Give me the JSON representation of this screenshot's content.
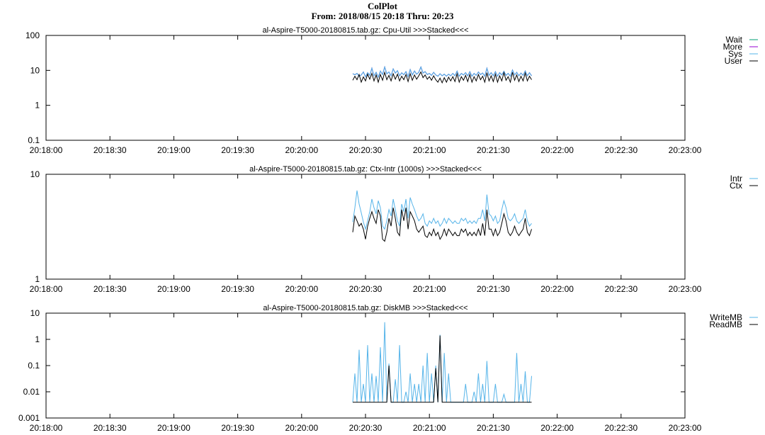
{
  "header": {
    "title": "ColPlot",
    "subtitle": "From: 2018/08/15 20:18 Thru: 20:23"
  },
  "colors": {
    "black": "#000000",
    "cyan": "#56b4e9",
    "purple": "#9400d3",
    "green": "#009e73"
  },
  "chart_data": [
    {
      "type": "line",
      "title": "al-Aspire-T5000-20180815.tab.gz: Cpu-Util >>>Stacked<<<",
      "yscale": "log",
      "ylim": [
        0.1,
        100
      ],
      "yticks": [
        {
          "value": 0.1,
          "label": "0.1"
        },
        {
          "value": 1,
          "label": "1"
        },
        {
          "value": 10,
          "label": "10"
        },
        {
          "value": 100,
          "label": "100"
        }
      ],
      "xlim": [
        "20:18:00",
        "20:23:00"
      ],
      "xticks": [
        "20:18:00",
        "20:18:30",
        "20:19:00",
        "20:19:30",
        "20:20:00",
        "20:20:30",
        "20:21:00",
        "20:21:30",
        "20:22:00",
        "20:22:30",
        "20:23:00"
      ],
      "x_start": "20:20:24",
      "x_step_seconds": 1,
      "legend": "right",
      "series": [
        {
          "name": "Wait",
          "color": "#009e73",
          "values": [
            8.0,
            7.5,
            8.2,
            6.8,
            7.4,
            9.0,
            6.5,
            8.6,
            7.2,
            11.5,
            7.0,
            8.8,
            6.4,
            9.5,
            7.6,
            12.5,
            8.0,
            9.0,
            7.0,
            11.0,
            8.4,
            9.8,
            7.0,
            8.5,
            7.5,
            9.2,
            6.6,
            10.5,
            7.4,
            9.6,
            7.8,
            8.8,
            12.5,
            8.4,
            9.2,
            7.6,
            8.2,
            7.2,
            8.8,
            7.4,
            6.8,
            8.0,
            7.0,
            7.8,
            6.8,
            7.8,
            7.0,
            8.2,
            7.0,
            9.5,
            6.8,
            8.2,
            7.4,
            8.6,
            7.0,
            9.2,
            6.8,
            8.2,
            7.2,
            9.0,
            7.6,
            8.4,
            6.8,
            11.5,
            7.2,
            8.6,
            7.0,
            9.2,
            6.8,
            8.6,
            7.4,
            9.4,
            7.2,
            8.2,
            6.8,
            10.2,
            7.4,
            8.8,
            7.0,
            8.4,
            7.2,
            9.6,
            7.0,
            8.6,
            7.0
          ]
        },
        {
          "name": "More",
          "color": "#9400d3",
          "values": [
            8.0,
            7.5,
            8.2,
            6.8,
            7.4,
            9.0,
            6.5,
            8.6,
            7.2,
            11.5,
            7.0,
            8.8,
            6.4,
            9.5,
            7.6,
            12.5,
            8.0,
            9.0,
            7.0,
            11.0,
            8.4,
            9.8,
            7.0,
            8.5,
            7.5,
            9.2,
            6.6,
            10.5,
            7.4,
            9.6,
            7.8,
            8.8,
            12.5,
            8.4,
            9.2,
            7.6,
            8.2,
            7.2,
            8.8,
            7.4,
            6.8,
            8.0,
            7.0,
            7.8,
            6.8,
            7.8,
            7.0,
            8.2,
            7.0,
            9.5,
            6.8,
            8.2,
            7.4,
            8.6,
            7.0,
            9.2,
            6.8,
            8.2,
            7.2,
            9.0,
            7.6,
            8.4,
            6.8,
            11.5,
            7.2,
            8.6,
            7.0,
            9.2,
            6.8,
            8.6,
            7.4,
            9.4,
            7.2,
            8.2,
            6.8,
            10.2,
            7.4,
            8.8,
            7.0,
            8.4,
            7.2,
            9.6,
            7.0,
            8.6,
            7.0
          ]
        },
        {
          "name": "Sys",
          "color": "#56b4e9",
          "values": [
            8.0,
            7.5,
            8.2,
            6.8,
            7.4,
            9.0,
            6.5,
            8.6,
            7.2,
            11.5,
            7.0,
            8.8,
            6.4,
            9.5,
            7.6,
            12.5,
            8.0,
            9.0,
            7.0,
            11.0,
            8.4,
            9.8,
            7.0,
            8.5,
            7.5,
            9.2,
            6.6,
            10.5,
            7.4,
            9.6,
            7.8,
            8.8,
            12.5,
            8.4,
            9.2,
            7.6,
            8.2,
            7.2,
            8.8,
            7.4,
            6.8,
            8.0,
            7.0,
            7.8,
            6.8,
            7.8,
            7.0,
            8.2,
            7.0,
            9.5,
            6.8,
            8.2,
            7.4,
            8.6,
            7.0,
            9.2,
            6.8,
            8.2,
            7.2,
            9.0,
            7.6,
            8.4,
            6.8,
            11.5,
            7.2,
            8.6,
            7.0,
            9.2,
            6.8,
            8.6,
            7.4,
            9.4,
            7.2,
            8.2,
            6.8,
            10.2,
            7.4,
            8.8,
            7.0,
            8.4,
            7.2,
            9.6,
            7.0,
            8.6,
            7.0
          ]
        },
        {
          "name": "User",
          "color": "#000000",
          "values": [
            5.2,
            6.8,
            5.4,
            7.6,
            4.6,
            6.5,
            5.0,
            7.8,
            5.6,
            8.2,
            5.0,
            7.4,
            4.6,
            7.6,
            5.2,
            8.8,
            5.4,
            7.2,
            5.0,
            8.0,
            5.6,
            7.8,
            5.0,
            6.8,
            5.4,
            7.6,
            4.8,
            8.0,
            5.2,
            7.4,
            5.6,
            7.0,
            9.0,
            6.2,
            7.4,
            5.6,
            6.6,
            5.2,
            7.0,
            5.4,
            4.6,
            6.0,
            4.4,
            6.2,
            4.6,
            6.4,
            5.0,
            6.6,
            4.8,
            8.0,
            4.6,
            6.6,
            5.2,
            7.2,
            4.8,
            7.6,
            4.6,
            6.6,
            5.0,
            7.6,
            5.4,
            6.8,
            4.6,
            8.6,
            5.0,
            7.0,
            4.8,
            7.8,
            4.6,
            7.0,
            5.0,
            8.6,
            5.2,
            6.6,
            4.6,
            8.8,
            5.2,
            7.4,
            4.8,
            6.8,
            5.0,
            8.4,
            5.0,
            6.8,
            5.4
          ]
        }
      ]
    },
    {
      "type": "line",
      "title": "al-Aspire-T5000-20180815.tab.gz: Ctx-Intr (1000s) >>>Stacked<<<",
      "yscale": "log",
      "ylim": [
        1,
        10
      ],
      "yticks": [
        {
          "value": 1,
          "label": "1"
        },
        {
          "value": 10,
          "label": "10"
        }
      ],
      "xlim": [
        "20:18:00",
        "20:23:00"
      ],
      "xticks": [
        "20:18:00",
        "20:18:30",
        "20:19:00",
        "20:19:30",
        "20:20:00",
        "20:20:30",
        "20:21:00",
        "20:21:30",
        "20:22:00",
        "20:22:30",
        "20:23:00"
      ],
      "x_start": "20:20:24",
      "x_step_seconds": 1,
      "legend": "right",
      "series": [
        {
          "name": "Intr",
          "color": "#56b4e9",
          "values": [
            3.5,
            4.8,
            7.0,
            5.2,
            4.3,
            3.5,
            3.0,
            3.6,
            4.4,
            5.8,
            4.8,
            4.2,
            5.6,
            4.8,
            3.2,
            3.0,
            3.6,
            4.6,
            4.0,
            5.8,
            4.6,
            3.6,
            3.2,
            5.2,
            4.4,
            5.8,
            3.8,
            6.0,
            5.2,
            4.6,
            4.0,
            3.6,
            3.8,
            4.2,
            3.4,
            3.2,
            3.6,
            3.4,
            3.8,
            3.4,
            3.6,
            3.2,
            3.4,
            3.8,
            3.4,
            3.8,
            3.6,
            3.4,
            3.6,
            3.4,
            3.4,
            3.8,
            3.6,
            3.8,
            3.4,
            3.6,
            3.4,
            3.6,
            3.4,
            3.8,
            3.8,
            4.6,
            3.6,
            6.4,
            4.2,
            4.0,
            3.6,
            4.0,
            3.4,
            3.6,
            4.6,
            5.6,
            4.8,
            3.8,
            3.6,
            3.8,
            4.2,
            3.6,
            3.4,
            3.6,
            3.8,
            4.6,
            3.6,
            3.2,
            3.4
          ]
        },
        {
          "name": "Ctx",
          "color": "#000000",
          "values": [
            2.8,
            4.0,
            3.6,
            3.2,
            3.4,
            3.0,
            2.4,
            3.2,
            3.8,
            4.4,
            3.8,
            3.4,
            4.6,
            4.0,
            2.4,
            2.3,
            2.8,
            3.8,
            3.2,
            4.8,
            3.8,
            2.8,
            2.6,
            4.6,
            3.6,
            4.8,
            3.0,
            4.4,
            4.0,
            3.6,
            3.0,
            2.8,
            3.0,
            3.2,
            2.6,
            2.5,
            2.8,
            2.6,
            3.0,
            2.6,
            2.8,
            2.4,
            2.6,
            3.0,
            2.6,
            3.0,
            2.8,
            2.6,
            2.8,
            2.6,
            2.6,
            3.0,
            2.8,
            3.0,
            2.6,
            2.8,
            2.6,
            2.8,
            2.6,
            3.0,
            2.6,
            3.4,
            2.6,
            4.6,
            3.0,
            3.0,
            2.6,
            3.0,
            2.6,
            2.8,
            3.4,
            4.2,
            3.6,
            2.8,
            2.6,
            2.8,
            3.2,
            2.8,
            2.6,
            2.8,
            3.0,
            3.8,
            2.8,
            2.6,
            3.0
          ]
        }
      ]
    },
    {
      "type": "line",
      "title": "al-Aspire-T5000-20180815.tab.gz: DiskMB >>>Stacked<<<",
      "yscale": "log",
      "ylim": [
        0.001,
        10
      ],
      "yticks": [
        {
          "value": 0.001,
          "label": "0.001"
        },
        {
          "value": 0.01,
          "label": "0.01"
        },
        {
          "value": 0.1,
          "label": "0.1"
        },
        {
          "value": 1,
          "label": "1"
        },
        {
          "value": 10,
          "label": "10"
        }
      ],
      "xlim": [
        "20:18:00",
        "20:23:00"
      ],
      "xticks": [
        "20:18:00",
        "20:18:30",
        "20:19:00",
        "20:19:30",
        "20:20:00",
        "20:20:30",
        "20:21:00",
        "20:21:30",
        "20:22:00",
        "20:22:30",
        "20:23:00"
      ],
      "x_start": "20:20:24",
      "x_step_seconds": 1,
      "legend": "right",
      "series": [
        {
          "name": "WriteMB",
          "color": "#56b4e9",
          "values": [
            0.004,
            0.05,
            0.004,
            0.4,
            0.004,
            0.02,
            0.004,
            0.6,
            0.004,
            0.05,
            0.004,
            0.04,
            0.004,
            0.5,
            0.004,
            4.5,
            0.004,
            0.12,
            0.004,
            0.004,
            0.03,
            0.004,
            0.6,
            0.004,
            0.004,
            0.01,
            0.004,
            0.05,
            0.004,
            0.02,
            0.004,
            0.02,
            0.004,
            0.1,
            0.004,
            0.3,
            0.004,
            0.05,
            0.004,
            0.1,
            0.004,
            1.5,
            0.004,
            0.3,
            0.004,
            0.05,
            0.004,
            0.004,
            0.004,
            0.004,
            0.004,
            0.004,
            0.004,
            0.02,
            0.004,
            0.004,
            0.004,
            0.01,
            0.004,
            0.05,
            0.004,
            0.02,
            0.004,
            0.15,
            0.004,
            0.004,
            0.004,
            0.02,
            0.004,
            0.004,
            0.004,
            0.008,
            0.004,
            0.004,
            0.004,
            0.004,
            0.004,
            0.3,
            0.004,
            0.02,
            0.004,
            0.06,
            0.004,
            0.004,
            0.04
          ]
        },
        {
          "name": "ReadMB",
          "color": "#000000",
          "values": [
            0.004,
            0.004,
            0.004,
            0.004,
            0.004,
            0.004,
            0.004,
            0.004,
            0.004,
            0.004,
            0.004,
            0.004,
            0.004,
            0.004,
            0.004,
            0.004,
            0.004,
            0.1,
            0.004,
            0.004,
            0.004,
            0.004,
            0.004,
            0.004,
            0.004,
            0.004,
            0.004,
            0.004,
            0.004,
            0.004,
            0.004,
            0.004,
            0.004,
            0.004,
            0.004,
            0.004,
            0.004,
            0.004,
            0.004,
            0.08,
            0.004,
            1.4,
            0.004,
            0.004,
            0.004,
            0.004,
            0.004,
            0.004,
            0.004,
            0.004,
            0.004,
            0.004,
            0.004,
            0.004,
            0.004,
            0.004,
            0.004,
            0.004,
            0.004,
            0.004,
            0.004,
            0.004,
            0.004,
            0.004,
            0.004,
            0.004,
            0.004,
            0.004,
            0.004,
            0.004,
            0.004,
            0.004,
            0.004,
            0.004,
            0.004,
            0.004,
            0.004,
            0.004,
            0.004,
            0.004,
            0.004,
            0.004,
            0.004,
            0.004,
            0.004
          ]
        }
      ]
    }
  ]
}
